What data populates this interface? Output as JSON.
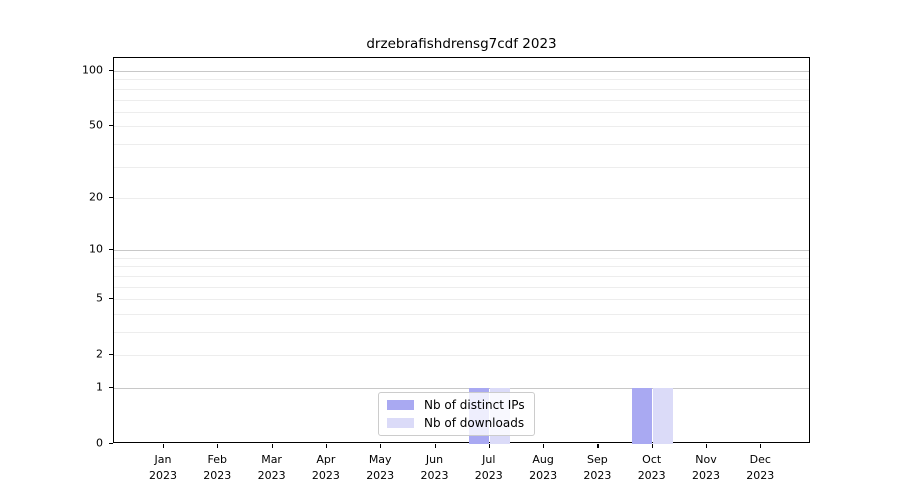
{
  "chart_data": {
    "type": "bar",
    "title": "drzebrafishdrensg7cdf 2023",
    "categories": [
      "Jan",
      "Feb",
      "Mar",
      "Apr",
      "May",
      "Jun",
      "Jul",
      "Aug",
      "Sep",
      "Oct",
      "Nov",
      "Dec"
    ],
    "category_sublabel": "2023",
    "series": [
      {
        "name": "Nb of distinct IPs",
        "color": "#a9a9f2",
        "values": [
          0,
          0,
          0,
          0,
          0,
          0,
          1,
          0,
          0,
          1,
          0,
          0
        ]
      },
      {
        "name": "Nb of downloads",
        "color": "#dbdbf8",
        "values": [
          0,
          0,
          0,
          0,
          0,
          0,
          1,
          0,
          0,
          1,
          0,
          0
        ]
      }
    ],
    "xlabel": "",
    "ylabel": "",
    "y_scale": "log1p",
    "ylim": [
      0,
      116
    ],
    "y_ticks": [
      0,
      1,
      2,
      5,
      10,
      20,
      50,
      100
    ],
    "y_gridlines": {
      "major": [
        1,
        10,
        100
      ],
      "minor": [
        2,
        3,
        4,
        5,
        6,
        7,
        8,
        9,
        20,
        30,
        40,
        50,
        60,
        70,
        80,
        90
      ]
    },
    "grid": true,
    "legend_position": "bottom-center"
  }
}
